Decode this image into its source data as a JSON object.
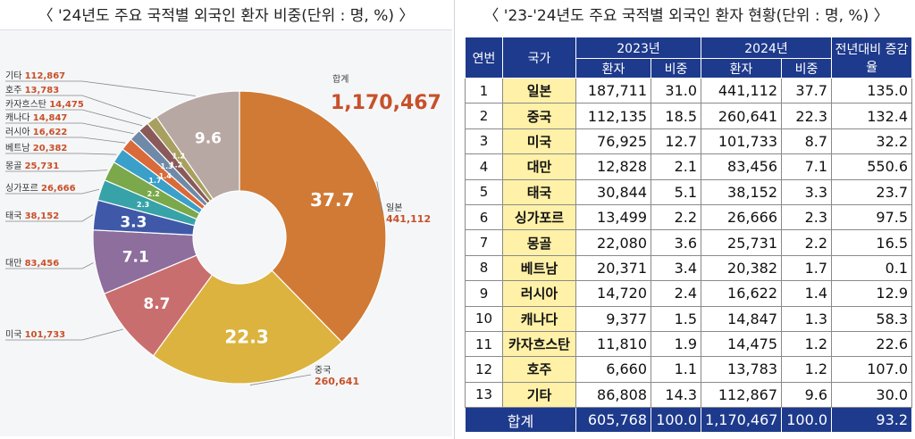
{
  "left_title": "〈 '24년도 주요 국적별 외국인 환자 비중(단위 : 명, %) 〉",
  "right_title": "〈 '23-'24년도 주요 국적별 외국인 환자 현황(단위 : 명, %) 〉",
  "chart_data": {
    "type": "pie",
    "total_label": "합계",
    "total_value": "1,170,467",
    "slices": [
      {
        "name": "일본",
        "count": "441,112",
        "pct": 37.7,
        "color": "#d07a35"
      },
      {
        "name": "중국",
        "count": "260,641",
        "pct": 22.3,
        "color": "#dcb33f"
      },
      {
        "name": "미국",
        "count": "101,733",
        "pct": 8.7,
        "color": "#c96e6e"
      },
      {
        "name": "대만",
        "count": "83,456",
        "pct": 7.1,
        "color": "#8d6e9c"
      },
      {
        "name": "태국",
        "count": "38,152",
        "pct": 3.3,
        "color": "#3f59a8"
      },
      {
        "name": "싱가포르",
        "count": "26,666",
        "pct": 2.3,
        "color": "#37a3a8"
      },
      {
        "name": "몽골",
        "count": "25,731",
        "pct": 2.2,
        "color": "#7aa84a"
      },
      {
        "name": "베트남",
        "count": "20,382",
        "pct": 1.7,
        "color": "#3aa0c9"
      },
      {
        "name": "러시아",
        "count": "16,622",
        "pct": 1.4,
        "color": "#d96a3a"
      },
      {
        "name": "캐나다",
        "count": "14,847",
        "pct": 1.3,
        "color": "#6e8aa8"
      },
      {
        "name": "카자흐스탄",
        "count": "14,475",
        "pct": 1.2,
        "color": "#8a5a5a"
      },
      {
        "name": "호주",
        "count": "13,783",
        "pct": 1.2,
        "color": "#a8a060"
      },
      {
        "name": "기타",
        "count": "112,867",
        "pct": 9.6,
        "color": "#b8a8a4"
      }
    ]
  },
  "table": {
    "headers": {
      "no": "연번",
      "country": "국가",
      "y2023": "2023년",
      "y2024": "2024년",
      "change": "전년대비 증감율",
      "patients": "환자",
      "share": "비중"
    },
    "rows": [
      {
        "no": "1",
        "country": "일본",
        "p23": "187,711",
        "s23": "31.0",
        "p24": "441,112",
        "s24": "37.7",
        "chg": "135.0"
      },
      {
        "no": "2",
        "country": "중국",
        "p23": "112,135",
        "s23": "18.5",
        "p24": "260,641",
        "s24": "22.3",
        "chg": "132.4"
      },
      {
        "no": "3",
        "country": "미국",
        "p23": "76,925",
        "s23": "12.7",
        "p24": "101,733",
        "s24": "8.7",
        "chg": "32.2"
      },
      {
        "no": "4",
        "country": "대만",
        "p23": "12,828",
        "s23": "2.1",
        "p24": "83,456",
        "s24": "7.1",
        "chg": "550.6"
      },
      {
        "no": "5",
        "country": "태국",
        "p23": "30,844",
        "s23": "5.1",
        "p24": "38,152",
        "s24": "3.3",
        "chg": "23.7"
      },
      {
        "no": "6",
        "country": "싱가포르",
        "p23": "13,499",
        "s23": "2.2",
        "p24": "26,666",
        "s24": "2.3",
        "chg": "97.5"
      },
      {
        "no": "7",
        "country": "몽골",
        "p23": "22,080",
        "s23": "3.6",
        "p24": "25,731",
        "s24": "2.2",
        "chg": "16.5"
      },
      {
        "no": "8",
        "country": "베트남",
        "p23": "20,371",
        "s23": "3.4",
        "p24": "20,382",
        "s24": "1.7",
        "chg": "0.1"
      },
      {
        "no": "9",
        "country": "러시아",
        "p23": "14,720",
        "s23": "2.4",
        "p24": "16,622",
        "s24": "1.4",
        "chg": "12.9"
      },
      {
        "no": "10",
        "country": "캐나다",
        "p23": "9,377",
        "s23": "1.5",
        "p24": "14,847",
        "s24": "1.3",
        "chg": "58.3"
      },
      {
        "no": "11",
        "country": "카자흐스탄",
        "p23": "11,810",
        "s23": "1.9",
        "p24": "14,475",
        "s24": "1.2",
        "chg": "22.6"
      },
      {
        "no": "12",
        "country": "호주",
        "p23": "6,660",
        "s23": "1.1",
        "p24": "13,783",
        "s24": "1.2",
        "chg": "107.0"
      },
      {
        "no": "13",
        "country": "기타",
        "p23": "86,808",
        "s23": "14.3",
        "p24": "112,867",
        "s24": "9.6",
        "chg": "30.0"
      }
    ],
    "total": {
      "label": "합계",
      "p23": "605,768",
      "s23": "100.0",
      "p24": "1,170,467",
      "s24": "100.0",
      "chg": "93.2"
    }
  }
}
